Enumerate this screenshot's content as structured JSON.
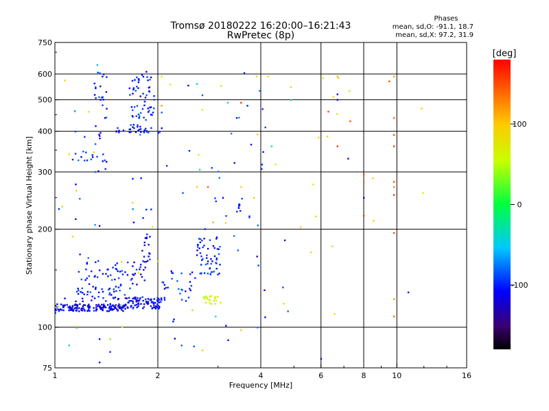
{
  "chart_data": {
    "type": "scatter",
    "title": "Tromsø 20180222 16:20:00–16:21:43",
    "subtitle": "RwPretec (8p)",
    "xlabel": "Frequency [MHz]",
    "ylabel": "Stationary phase Virtual Height [km]",
    "x_scale": "log2",
    "y_scale": "log",
    "xlim": [
      1,
      16
    ],
    "ylim": [
      75,
      750
    ],
    "x_ticks": [
      1,
      2,
      4,
      6,
      8,
      10,
      16
    ],
    "x_tick_labels": [
      "1",
      "2",
      "4",
      "6",
      "8",
      "10",
      "16"
    ],
    "y_ticks": [
      75,
      100,
      200,
      300,
      400,
      500,
      600,
      750
    ],
    "y_tick_labels": [
      "75",
      "100",
      "200",
      "300",
      "400",
      "500",
      "600",
      "750"
    ],
    "vertical_grid": [
      2,
      4,
      6,
      8,
      10
    ],
    "horizontal_grid": [
      100,
      200,
      300,
      400,
      500,
      600
    ],
    "grid": true,
    "info": {
      "title": "Phases",
      "line1": "mean, sd,O: -91.1, 18.7",
      "line2": "mean, sd,X:  97.2, 31.9"
    },
    "colorbar": {
      "label": "[deg]",
      "min": -180,
      "max": 180,
      "ticks": [
        100,
        0,
        -100
      ],
      "tick_labels": [
        "100",
        "0",
        "-100"
      ]
    },
    "clusters": [
      {
        "x": [
          1.0,
          1.6
        ],
        "y": [
          112,
          118
        ],
        "n": 160,
        "phase": -112
      },
      {
        "x": [
          1.6,
          2.05
        ],
        "y": [
          114,
          124
        ],
        "n": 90,
        "phase": -110
      },
      {
        "x": [
          1.15,
          1.7
        ],
        "y": [
          120,
          135
        ],
        "n": 45,
        "phase": -102
      },
      {
        "x": [
          1.2,
          1.85
        ],
        "y": [
          135,
          160
        ],
        "n": 50,
        "phase": -105
      },
      {
        "x": [
          1.8,
          1.9
        ],
        "y": [
          150,
          195
        ],
        "n": 18,
        "phase": -108
      },
      {
        "x": [
          2.05,
          2.6
        ],
        "y": [
          120,
          150
        ],
        "n": 25,
        "phase": -100
      },
      {
        "x": [
          2.6,
          3.05
        ],
        "y": [
          145,
          190
        ],
        "n": 55,
        "phase": -100
      },
      {
        "x": [
          2.7,
          3.05
        ],
        "y": [
          118,
          125
        ],
        "n": 22,
        "phase": 65
      },
      {
        "x": [
          1.65,
          1.95
        ],
        "y": [
          395,
          600
        ],
        "n": 70,
        "phase": -100
      },
      {
        "x": [
          1.3,
          1.42
        ],
        "y": [
          300,
          620
        ],
        "n": 35,
        "phase": -100
      },
      {
        "x": [
          1.1,
          1.3
        ],
        "y": [
          325,
          350
        ],
        "n": 12,
        "phase": -95
      },
      {
        "x": [
          1.5,
          2.1
        ],
        "y": [
          395,
          410
        ],
        "n": 20,
        "phase": -105
      },
      {
        "x": [
          3.4,
          3.5
        ],
        "y": [
          225,
          240
        ],
        "n": 8,
        "phase": -110
      },
      {
        "x": [
          1.0,
          4.8
        ],
        "y": [
          85,
          620
        ],
        "n": 70,
        "phase": -90
      },
      {
        "x": [
          1.0,
          12.0
        ],
        "y": [
          100,
          600
        ],
        "n": 40,
        "phase": 80
      }
    ],
    "points": [
      {
        "x": 6.7,
        "y": 590,
        "phase": 110
      },
      {
        "x": 6.7,
        "y": 520,
        "phase": -120
      },
      {
        "x": 6.7,
        "y": 500,
        "phase": -115
      },
      {
        "x": 6.3,
        "y": 460,
        "phase": 150
      },
      {
        "x": 6.7,
        "y": 360,
        "phase": 160
      },
      {
        "x": 7.2,
        "y": 330,
        "phase": -110
      },
      {
        "x": 7.3,
        "y": 430,
        "phase": 150
      },
      {
        "x": 8.0,
        "y": 295,
        "phase": 150
      },
      {
        "x": 8.0,
        "y": 280,
        "phase": 140
      },
      {
        "x": 8.0,
        "y": 250,
        "phase": -110
      },
      {
        "x": 8.0,
        "y": 220,
        "phase": 160
      },
      {
        "x": 9.5,
        "y": 570,
        "phase": 150
      },
      {
        "x": 9.8,
        "y": 590,
        "phase": 120
      },
      {
        "x": 9.8,
        "y": 440,
        "phase": 140
      },
      {
        "x": 9.8,
        "y": 390,
        "phase": 150
      },
      {
        "x": 9.8,
        "y": 360,
        "phase": 160
      },
      {
        "x": 9.8,
        "y": 280,
        "phase": 150
      },
      {
        "x": 9.8,
        "y": 270,
        "phase": 130
      },
      {
        "x": 9.8,
        "y": 255,
        "phase": 160
      },
      {
        "x": 9.8,
        "y": 195,
        "phase": 150
      },
      {
        "x": 9.8,
        "y": 122,
        "phase": 120
      },
      {
        "x": 9.8,
        "y": 108,
        "phase": 140
      },
      {
        "x": 10.8,
        "y": 128,
        "phase": -120
      },
      {
        "x": 11.8,
        "y": 470,
        "phase": 100
      },
      {
        "x": 6.0,
        "y": 80,
        "phase": -130
      },
      {
        "x": 4.2,
        "y": 590,
        "phase": 90
      },
      {
        "x": 4.3,
        "y": 360,
        "phase": -20
      },
      {
        "x": 4.9,
        "y": 500,
        "phase": -30
      },
      {
        "x": 4.7,
        "y": 185,
        "phase": -130
      },
      {
        "x": 4.8,
        "y": 112,
        "phase": -80
      },
      {
        "x": 4.1,
        "y": 130,
        "phase": -110
      },
      {
        "x": 3.9,
        "y": 165,
        "phase": -130
      },
      {
        "x": 5.6,
        "y": 170,
        "phase": 90
      },
      {
        "x": 3.5,
        "y": 490,
        "phase": 160
      },
      {
        "x": 3.2,
        "y": 490,
        "phase": -40
      },
      {
        "x": 3.4,
        "y": 440,
        "phase": -120
      },
      {
        "x": 3.35,
        "y": 320,
        "phase": -130
      },
      {
        "x": 3.5,
        "y": 270,
        "phase": 90
      },
      {
        "x": 3.1,
        "y": 250,
        "phase": -110
      },
      {
        "x": 2.9,
        "y": 210,
        "phase": 110
      },
      {
        "x": 2.8,
        "y": 270,
        "phase": 150
      },
      {
        "x": 2.6,
        "y": 270,
        "phase": 100
      },
      {
        "x": 2.65,
        "y": 305,
        "phase": -30
      },
      {
        "x": 2.6,
        "y": 560,
        "phase": -40
      },
      {
        "x": 2.7,
        "y": 85,
        "phase": 90
      },
      {
        "x": 2.95,
        "y": 108,
        "phase": -30
      },
      {
        "x": 3.5,
        "y": 98,
        "phase": 100
      },
      {
        "x": 2.05,
        "y": 590,
        "phase": 60
      },
      {
        "x": 2.05,
        "y": 480,
        "phase": 120
      },
      {
        "x": 1.35,
        "y": 92,
        "phase": -120
      },
      {
        "x": 1.45,
        "y": 92,
        "phase": 30
      },
      {
        "x": 1.45,
        "y": 84,
        "phase": -100
      },
      {
        "x": 1.1,
        "y": 88,
        "phase": -40
      },
      {
        "x": 1.35,
        "y": 78,
        "phase": -110
      },
      {
        "x": 1.15,
        "y": 215,
        "phase": -120
      },
      {
        "x": 1.15,
        "y": 275,
        "phase": -110
      },
      {
        "x": 1.05,
        "y": 235,
        "phase": 100
      },
      {
        "x": 1.35,
        "y": 205,
        "phase": -120
      },
      {
        "x": 1.7,
        "y": 210,
        "phase": -110
      },
      {
        "x": 1.85,
        "y": 230,
        "phase": -100
      },
      {
        "x": 1.85,
        "y": 610,
        "phase": -110
      },
      {
        "x": 1.33,
        "y": 640,
        "phase": -60
      },
      {
        "x": 1.3,
        "y": 345,
        "phase": 90
      },
      {
        "x": 1.1,
        "y": 340,
        "phase": 80
      }
    ]
  }
}
